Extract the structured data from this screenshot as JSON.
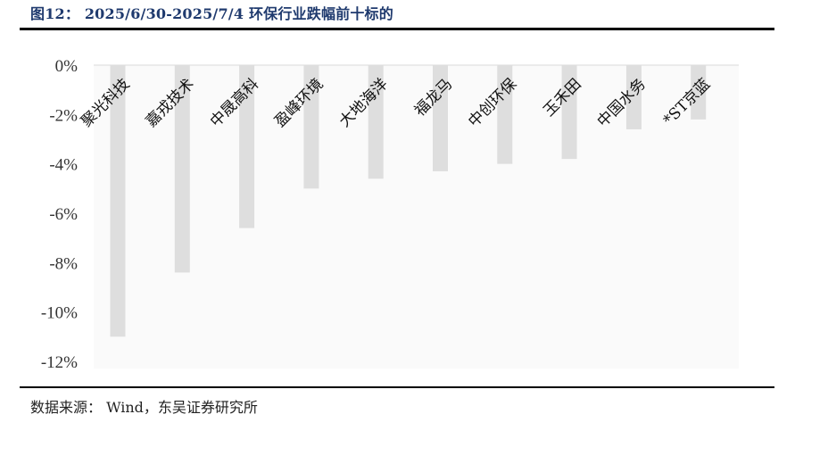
{
  "figure_title": "图12：  2025/6/30-2025/7/4 环保行业跌幅前十标的",
  "source_text": "数据来源：  Wind，东吴证券研究所",
  "chart_data": {
    "type": "bar",
    "categories": [
      "聚光科技",
      "嘉戎技术",
      "中晟高科",
      "盈峰环境",
      "大地海洋",
      "福龙马",
      "中创环保",
      "玉禾田",
      "中国水务",
      "*ST京蓝"
    ],
    "values": [
      -11.0,
      -8.4,
      -6.6,
      -5.0,
      -4.6,
      -4.3,
      -4.0,
      -3.8,
      -2.6,
      -2.2
    ],
    "ylim": [
      -12,
      0
    ],
    "yticks": [
      0,
      -2,
      -4,
      -6,
      -8,
      -10,
      -12
    ],
    "ytick_labels": [
      "0%",
      "-2%",
      "-4%",
      "-6%",
      "-8%",
      "-10%",
      "-12%"
    ],
    "title": "",
    "xlabel": "",
    "ylabel": "",
    "grid": false,
    "bar_color": "#dedede",
    "plot_bg": "#fafafa"
  }
}
